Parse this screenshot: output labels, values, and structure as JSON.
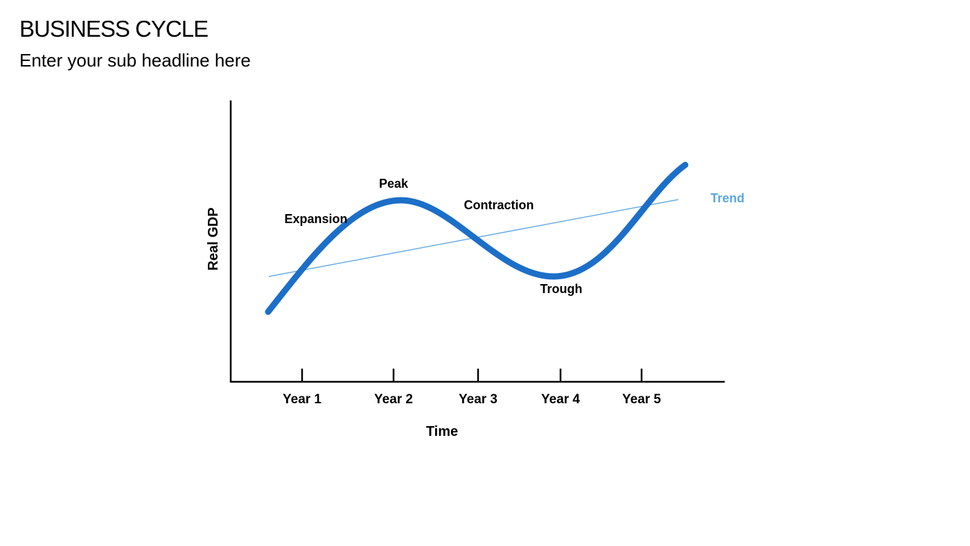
{
  "header": {
    "title": "BUSINESS CYCLE",
    "subtitle": "Enter your sub headline here"
  },
  "diagram": {
    "axes": {
      "x_title": "Time",
      "y_title": "Real GDP",
      "ticks": [
        "Year 1",
        "Year 2",
        "Year 3",
        "Year 4",
        "Year 5"
      ]
    },
    "phases": {
      "expansion": "Expansion",
      "peak": "Peak",
      "contraction": "Contraction",
      "trough": "Trough"
    },
    "trend_label": "Trend",
    "colors": {
      "cycle_line": "#1c6fc8",
      "trend_line": "#6aaee3",
      "trend_label": "#5aa7e0",
      "axis": "#000000"
    }
  }
}
